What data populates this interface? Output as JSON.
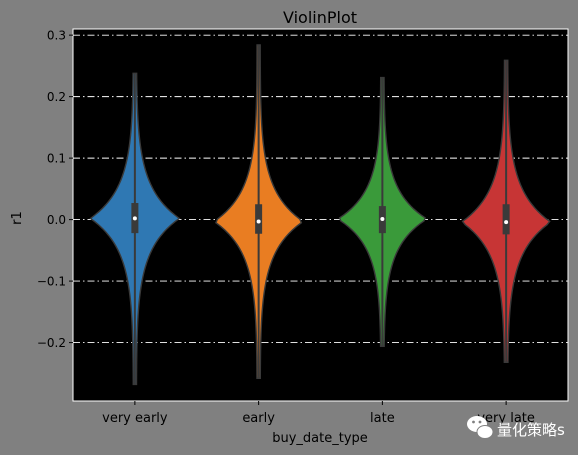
{
  "chart_data": {
    "type": "violin",
    "title": "ViolinPlot",
    "xlabel": "buy_date_type",
    "ylabel": "r1",
    "ylim": [
      -0.295,
      0.31
    ],
    "yticks": [
      {
        "value": 0.3,
        "label": "0.3"
      },
      {
        "value": 0.2,
        "label": "0.2"
      },
      {
        "value": 0.1,
        "label": "0.1"
      },
      {
        "value": 0.0,
        "label": "0.0"
      },
      {
        "value": -0.1,
        "label": "−0.1"
      },
      {
        "value": -0.2,
        "label": "−0.2"
      }
    ],
    "grid": "y",
    "background": "#000000",
    "categories": [
      "very early",
      "early",
      "late",
      "very late"
    ],
    "series": [
      {
        "category": "very early",
        "color": "#2f78b3",
        "min": -0.268,
        "max": 0.238,
        "q1": -0.022,
        "median": 0.002,
        "q3": 0.027
      },
      {
        "category": "early",
        "color": "#e97d22",
        "min": -0.258,
        "max": 0.284,
        "q1": -0.023,
        "median": -0.003,
        "q3": 0.025
      },
      {
        "category": "late",
        "color": "#3a9a3a",
        "min": -0.206,
        "max": 0.231,
        "q1": -0.022,
        "median": 0.001,
        "q3": 0.022
      },
      {
        "category": "very late",
        "color": "#c73535",
        "min": -0.232,
        "max": 0.259,
        "q1": -0.024,
        "median": -0.004,
        "q3": 0.025
      }
    ]
  },
  "watermark": {
    "text": "量化策略s",
    "icon": "wechat-icon"
  }
}
